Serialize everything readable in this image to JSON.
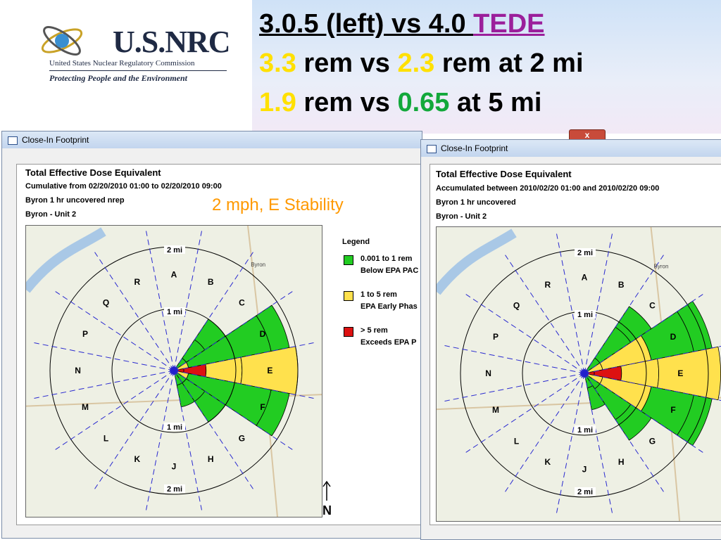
{
  "logo": {
    "name": "U.S.NRC",
    "subtitle": "United States Nuclear Regulatory Commission",
    "tagline": "Protecting People and the Environment"
  },
  "title": {
    "line1_a": "3.0.5 (left) vs 4.0 ",
    "line1_b": "TEDE",
    "line2_a": "3.3",
    "line2_b": " rem vs ",
    "line2_c": "2.3",
    "line2_d": " rem at 2 mi",
    "line3_a": "1.9",
    "line3_b": " rem vs ",
    "line3_c": "0.65",
    "line3_d": " at 5 mi"
  },
  "annotation": "2 mph, E Stability",
  "north_label": "N",
  "close_button": "x",
  "left_window": {
    "title": "Close-In Footprint",
    "heading": "Total Effective Dose Equivalent",
    "line1": "Cumulative from 02/20/2010 01:00 to 02/20/2010 09:00",
    "line2": "Byron 1 hr uncovered nrep",
    "line3": "Byron - Unit 2",
    "legend_title": "Legend",
    "legend": [
      {
        "l1": "0.001 to 1 rem",
        "l2": "Below EPA PAC",
        "color": "#22cc22"
      },
      {
        "l1": "1 to 5 rem",
        "l2": "EPA Early Phas",
        "color": "#ffe14d"
      },
      {
        "l1": "> 5 rem",
        "l2": "Exceeds EPA P",
        "color": "#dd1111"
      }
    ]
  },
  "right_window": {
    "title": "Close-In Footprint",
    "heading": "Total Effective Dose Equivalent",
    "line1": "Accumulated between 2010/02/20 01:00 and 2010/02/20 09:00",
    "line2": "Byron 1 hr uncovered",
    "line3": "Byron - Unit 2"
  },
  "map": {
    "sectors": [
      "A",
      "B",
      "C",
      "D",
      "E",
      "F",
      "G",
      "H",
      "J",
      "K",
      "L",
      "M",
      "N",
      "P",
      "Q",
      "R"
    ],
    "ring_inner": "1 mi",
    "ring_outer": "2 mi",
    "place": "Byron",
    "colors": {
      "green": "#22cc22",
      "yellow": "#ffe14d",
      "red": "#dd1111"
    }
  }
}
